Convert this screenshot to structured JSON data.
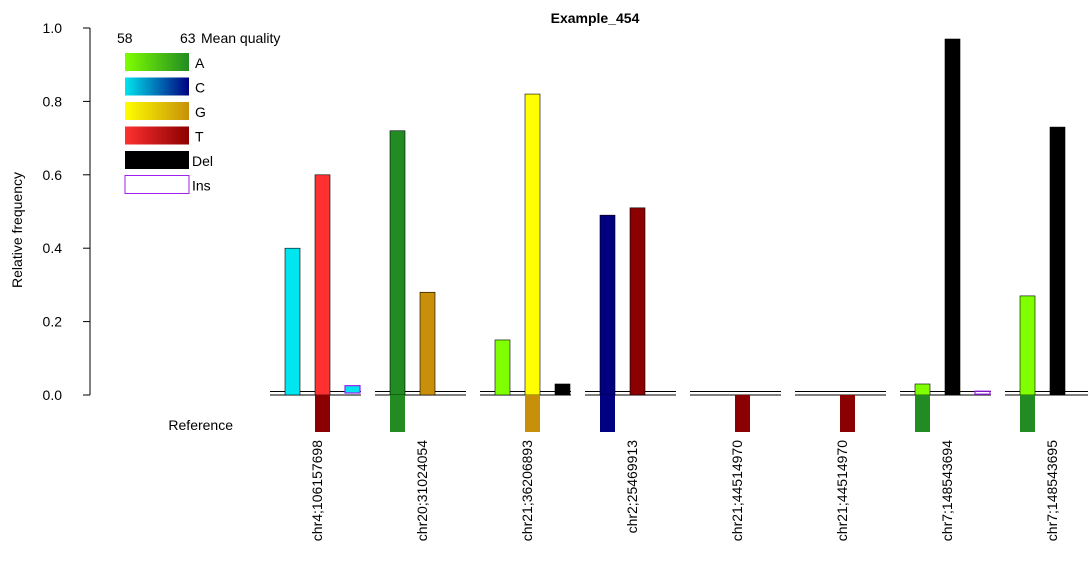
{
  "chart_data": {
    "type": "bar",
    "title": "Example_454",
    "xlabel": "",
    "ylabel": "Relative frequency",
    "ylim": [
      0,
      1.0
    ],
    "yticks": [
      "0.0",
      "0.2",
      "0.4",
      "0.6",
      "0.8",
      "1.0"
    ],
    "reference_label": "Reference",
    "legend": {
      "min_label": "58",
      "max_label": "63",
      "title": "Mean quality",
      "entries": [
        {
          "label": "A",
          "key": "A"
        },
        {
          "label": "C",
          "key": "C"
        },
        {
          "label": "G",
          "key": "G"
        },
        {
          "label": "T",
          "key": "T"
        },
        {
          "label": "Del",
          "key": "Del"
        },
        {
          "label": "Ins",
          "key": "Ins"
        }
      ]
    },
    "colors": {
      "A": [
        "#7fff00",
        "#228b22"
      ],
      "C": [
        "#00e5ee",
        "#000080"
      ],
      "G": [
        "#ffff00",
        "#c8900a"
      ],
      "T": [
        "#ff3030",
        "#8b0000"
      ],
      "Del": [
        "#000000",
        "#000000"
      ],
      "Ins": [
        "#a020f0",
        "#a020f0"
      ]
    },
    "categories": [
      "chr4;106157698",
      "chr20;31024054",
      "chr21;36206893",
      "chr2;25469913",
      "chr21;44514970",
      "chr21;44514970",
      "chr7;148543694",
      "chr7;148543695"
    ],
    "positions": [
      {
        "reference": {
          "base": "T",
          "shade": "dark"
        },
        "bars": [
          {
            "base": "C",
            "value": 0.4,
            "shade": "light"
          },
          {
            "base": "T",
            "value": 0.6,
            "shade": "light"
          },
          {
            "base": "Ins",
            "value": 0.02,
            "shade": "light"
          }
        ]
      },
      {
        "reference": {
          "base": "A",
          "shade": "dark"
        },
        "bars": [
          {
            "base": "A",
            "value": 0.72,
            "shade": "dark"
          },
          {
            "base": "G",
            "value": 0.28,
            "shade": "dark"
          }
        ]
      },
      {
        "reference": {
          "base": "G",
          "shade": "dark"
        },
        "bars": [
          {
            "base": "A",
            "value": 0.15,
            "shade": "light"
          },
          {
            "base": "G",
            "value": 0.82,
            "shade": "light"
          },
          {
            "base": "Del",
            "value": 0.03,
            "shade": "dark"
          }
        ]
      },
      {
        "reference": {
          "base": "C",
          "shade": "dark"
        },
        "bars": [
          {
            "base": "C",
            "value": 0.49,
            "shade": "dark"
          },
          {
            "base": "T",
            "value": 0.51,
            "shade": "dark"
          }
        ]
      },
      {
        "reference": {
          "base": "T",
          "shade": "dark"
        },
        "bars": []
      },
      {
        "reference": {
          "base": "T",
          "shade": "dark"
        },
        "bars": []
      },
      {
        "reference": {
          "base": "A",
          "shade": "dark"
        },
        "bars": [
          {
            "base": "A",
            "value": 0.03,
            "shade": "light"
          },
          {
            "base": "Del",
            "value": 0.97,
            "shade": "dark"
          },
          {
            "base": "Ins",
            "value": 0.005,
            "shade": "light"
          }
        ]
      },
      {
        "reference": {
          "base": "A",
          "shade": "dark"
        },
        "bars": [
          {
            "base": "A",
            "value": 0.27,
            "shade": "light"
          },
          {
            "base": "Del",
            "value": 0.73,
            "shade": "dark"
          }
        ]
      }
    ]
  }
}
